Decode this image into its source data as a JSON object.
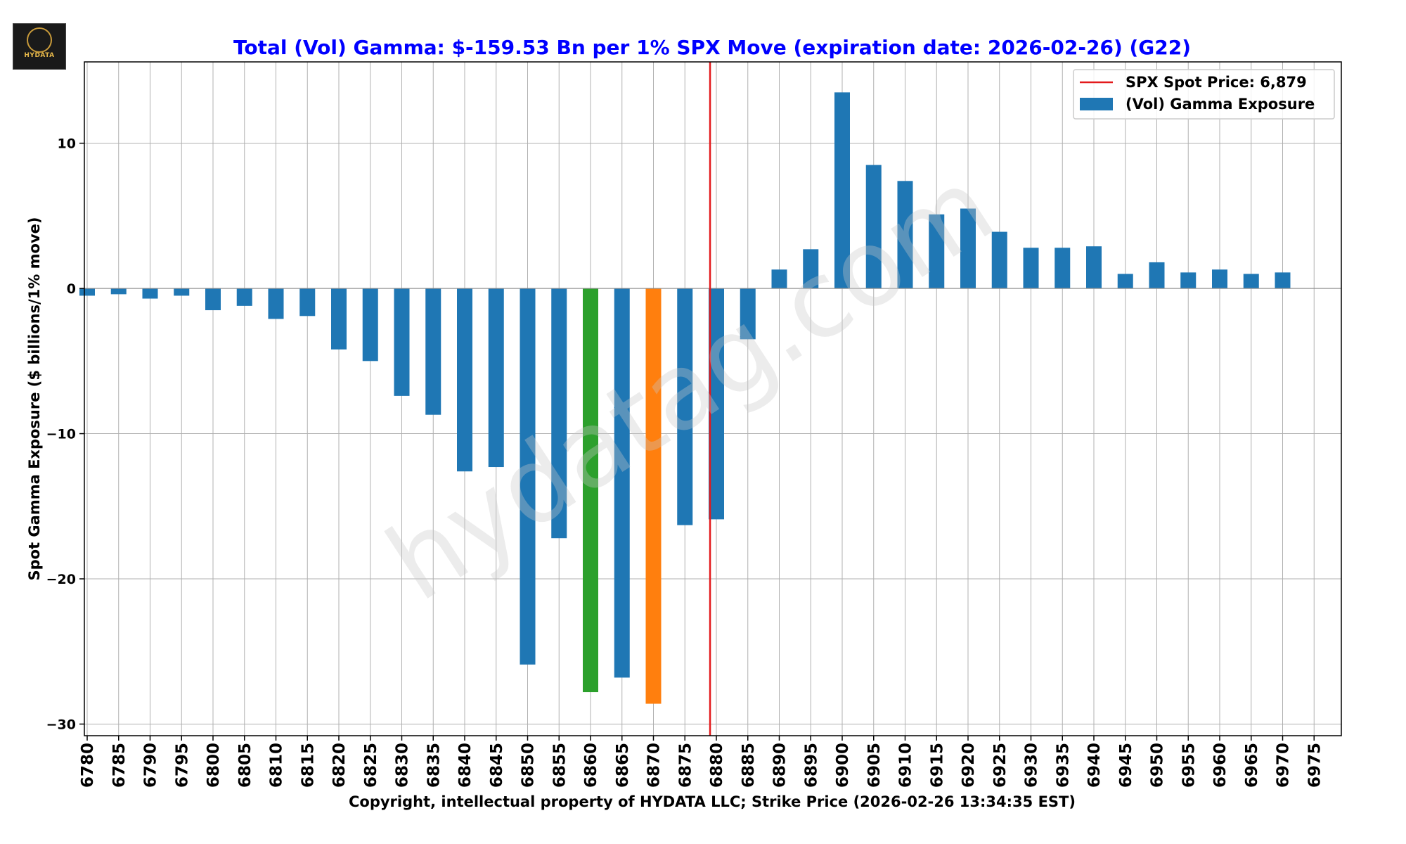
{
  "logo": {
    "text": "HYDATA"
  },
  "watermark": "hydatag.com",
  "chart_data": {
    "type": "bar",
    "title": "Total (Vol) Gamma: $-159.53 Bn per 1% SPX Move (expiration date: 2026-02-26) (G22)",
    "xlabel": "Copyright, intellectual property of HYDATA LLC; Strike Price (2026-02-26 13:34:35 EST)",
    "ylabel": "Spot Gamma Exposure ($ billions/1% move)",
    "ylim": [
      -30.8,
      15.6
    ],
    "yticks": [
      10,
      0,
      -10,
      -20,
      -30
    ],
    "ytick_labels": [
      "10",
      "0",
      "−10",
      "−20",
      "−30"
    ],
    "grid": true,
    "legend_position": "top-right",
    "categories": [
      "6780",
      "6785",
      "6790",
      "6795",
      "6800",
      "6805",
      "6810",
      "6815",
      "6820",
      "6825",
      "6830",
      "6835",
      "6840",
      "6845",
      "6850",
      "6855",
      "6860",
      "6865",
      "6870",
      "6875",
      "6880",
      "6885",
      "6890",
      "6895",
      "6900",
      "6905",
      "6910",
      "6915",
      "6920",
      "6925",
      "6930",
      "6935",
      "6940",
      "6945",
      "6950",
      "6955",
      "6960",
      "6965",
      "6970",
      "6975"
    ],
    "series": [
      {
        "name": "(Vol) Gamma Exposure",
        "color": "#1f77b4",
        "values": [
          -0.5,
          -0.4,
          -0.7,
          -0.5,
          -1.5,
          -1.2,
          -2.1,
          -1.9,
          -4.2,
          -5.0,
          -7.4,
          -8.7,
          -12.6,
          -12.3,
          -25.9,
          -17.2,
          -27.8,
          -26.8,
          -28.6,
          -16.3,
          -15.9,
          -3.5,
          1.3,
          2.7,
          13.5,
          8.5,
          7.4,
          5.1,
          5.5,
          3.9,
          2.8,
          2.8,
          2.9,
          1.0,
          1.8,
          1.1,
          1.3,
          1.0,
          1.1,
          0
        ]
      }
    ],
    "highlight_colors": {
      "6860": "#2ca02c",
      "6870": "#ff7f0e"
    },
    "spot_line": {
      "label": "SPX Spot Price: 6,879",
      "value": 6879,
      "color": "#e31a1c"
    },
    "colors": {
      "title": "#0000ff",
      "bar": "#1f77b4",
      "grid": "#b0b0b0"
    }
  }
}
